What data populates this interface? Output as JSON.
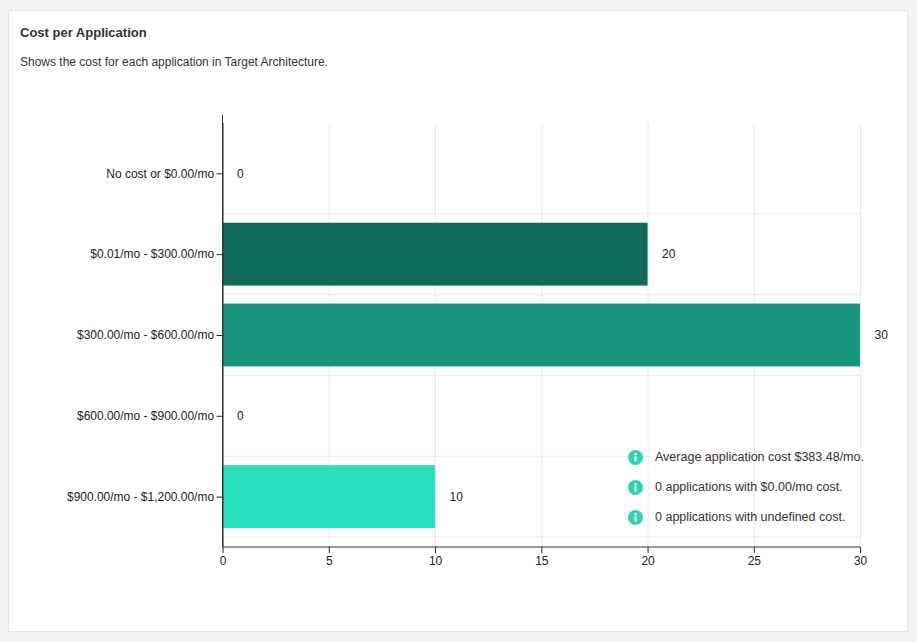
{
  "chart_data": {
    "type": "bar",
    "title": "Cost per Application",
    "subtitle": "Shows the cost for each application in Target Architecture.",
    "orientation": "horizontal",
    "categories": [
      "No cost or $0.00/mo",
      "$0.01/mo - $300.00/mo",
      "$300.00/mo - $600.00/mo",
      "$600.00/mo - $900.00/mo",
      "$900.00/mo - $1,200.00/mo"
    ],
    "values": [
      0,
      20,
      30,
      0,
      10
    ],
    "colors": [
      "#0b4d40",
      "#116b5a",
      "#17957d",
      "#1fb99b",
      "#27e0bd"
    ],
    "xlim": [
      0,
      30
    ],
    "xticks": [
      0,
      5,
      10,
      15,
      20,
      25,
      30
    ],
    "grid": true,
    "data_labels": true,
    "annotations": [
      "Average application cost $383.48/mo.",
      "0 applications with $0.00/mo cost.",
      "0 applications with undefined cost."
    ]
  }
}
